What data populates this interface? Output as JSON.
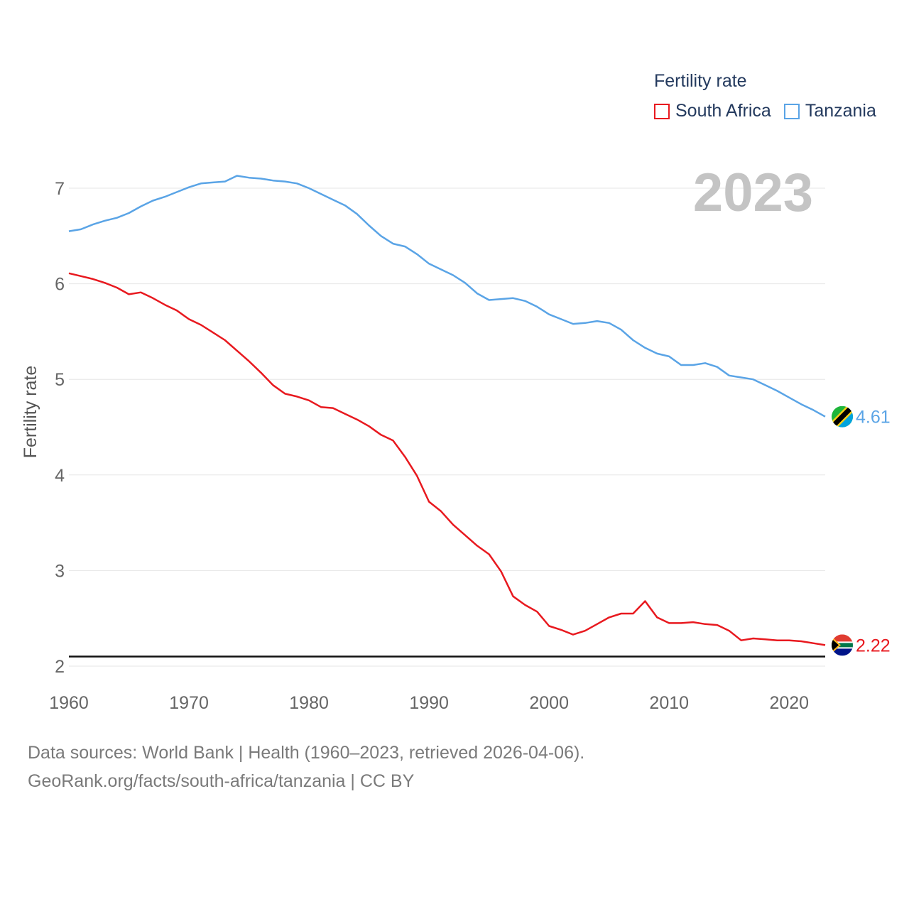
{
  "legend": {
    "title": "Fertility rate",
    "items": [
      {
        "label": "South Africa",
        "color": "#e8191f"
      },
      {
        "label": "Tanzania",
        "color": "#5aa4e6"
      }
    ]
  },
  "current_year": "2023",
  "footer": {
    "line1": "Data sources: World Bank | Health (1960–2023, retrieved 2026-04-06).",
    "line2": "GeoRank.org/facts/south-africa/tanzania | CC BY"
  },
  "chart_data": {
    "type": "line",
    "title": "Fertility rate",
    "xlabel": "",
    "ylabel": "Fertility rate",
    "xlim": [
      1960,
      2023
    ],
    "ylim": [
      2,
      7.2
    ],
    "x_ticks": [
      1960,
      1970,
      1980,
      1990,
      2000,
      2010,
      2020
    ],
    "y_ticks": [
      2,
      3,
      4,
      5,
      6,
      7
    ],
    "grid": true,
    "reference_line": 2.1,
    "x": [
      1960,
      1961,
      1962,
      1963,
      1964,
      1965,
      1966,
      1967,
      1968,
      1969,
      1970,
      1971,
      1972,
      1973,
      1974,
      1975,
      1976,
      1977,
      1978,
      1979,
      1980,
      1981,
      1982,
      1983,
      1984,
      1985,
      1986,
      1987,
      1988,
      1989,
      1990,
      1991,
      1992,
      1993,
      1994,
      1995,
      1996,
      1997,
      1998,
      1999,
      2000,
      2001,
      2002,
      2003,
      2004,
      2005,
      2006,
      2007,
      2008,
      2009,
      2010,
      2011,
      2012,
      2013,
      2014,
      2015,
      2016,
      2017,
      2018,
      2019,
      2020,
      2021,
      2022,
      2023
    ],
    "series": [
      {
        "name": "South Africa",
        "color": "#e8191f",
        "end_label": "2.22",
        "values": [
          6.11,
          6.08,
          6.05,
          6.01,
          5.96,
          5.89,
          5.91,
          5.85,
          5.78,
          5.72,
          5.63,
          5.57,
          5.49,
          5.41,
          5.3,
          5.19,
          5.07,
          4.94,
          4.85,
          4.82,
          4.78,
          4.71,
          4.7,
          4.64,
          4.58,
          4.51,
          4.42,
          4.36,
          4.19,
          3.99,
          3.72,
          3.62,
          3.48,
          3.37,
          3.26,
          3.17,
          2.99,
          2.73,
          2.64,
          2.57,
          2.42,
          2.38,
          2.33,
          2.37,
          2.44,
          2.51,
          2.55,
          2.55,
          2.68,
          2.51,
          2.45,
          2.45,
          2.46,
          2.44,
          2.43,
          2.37,
          2.27,
          2.29,
          2.28,
          2.27,
          2.27,
          2.26,
          2.24,
          2.22
        ]
      },
      {
        "name": "Tanzania",
        "color": "#5aa4e6",
        "end_label": "4.61",
        "values": [
          6.55,
          6.57,
          6.62,
          6.66,
          6.69,
          6.74,
          6.81,
          6.87,
          6.91,
          6.96,
          7.01,
          7.05,
          7.06,
          7.07,
          7.13,
          7.11,
          7.1,
          7.08,
          7.07,
          7.05,
          7.0,
          6.94,
          6.88,
          6.82,
          6.73,
          6.61,
          6.5,
          6.42,
          6.39,
          6.31,
          6.21,
          6.15,
          6.09,
          6.01,
          5.9,
          5.83,
          5.84,
          5.85,
          5.82,
          5.76,
          5.68,
          5.63,
          5.58,
          5.59,
          5.61,
          5.59,
          5.52,
          5.41,
          5.33,
          5.27,
          5.24,
          5.15,
          5.15,
          5.17,
          5.13,
          5.04,
          5.02,
          5.0,
          4.94,
          4.88,
          4.81,
          4.74,
          4.68,
          4.61
        ]
      }
    ]
  }
}
